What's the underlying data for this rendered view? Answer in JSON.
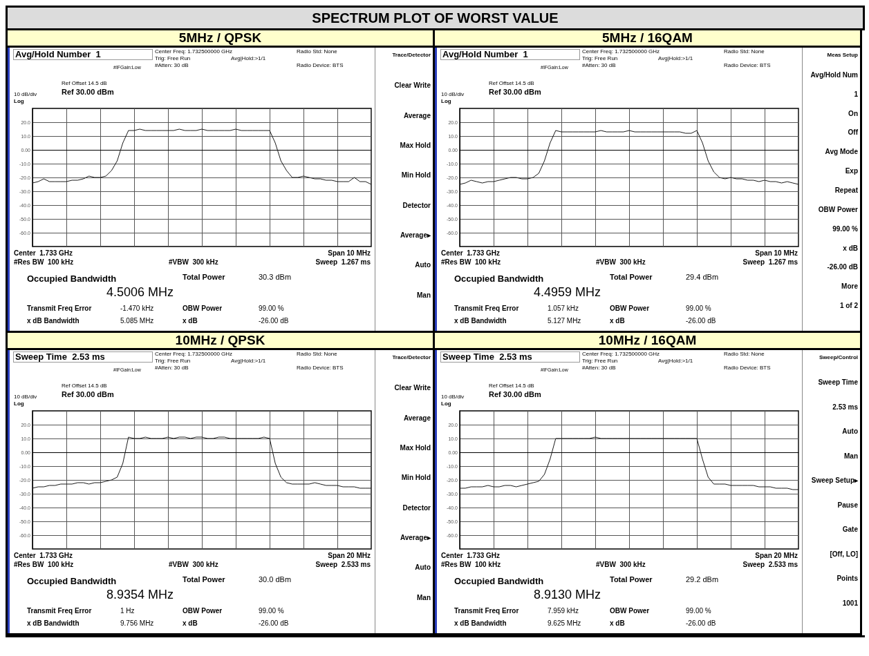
{
  "chart_data": [
    {
      "type": "other",
      "title": "SPECTRUM PLOT OF WORST VALUE"
    },
    {
      "type": "line",
      "title": "5MHz / QPSK",
      "categories": [
        null,
        null,
        null,
        null,
        null,
        null,
        null,
        null,
        null,
        null,
        null,
        null,
        null,
        null,
        null,
        null,
        null,
        null,
        null,
        null,
        null,
        null,
        null,
        null,
        null,
        null,
        null,
        null,
        null,
        null,
        null,
        null,
        null,
        null,
        null,
        null,
        null,
        null,
        null,
        null,
        null,
        null,
        null,
        null,
        null,
        null,
        null,
        null,
        null,
        null,
        null,
        null,
        null,
        null,
        null,
        null,
        null,
        null,
        null,
        null,
        null
      ],
      "color": "#1a1a1a",
      "values": [
        -24,
        -23,
        -21,
        -23,
        -23,
        -23,
        -23,
        -22,
        -22,
        -21,
        -19,
        -20,
        -20,
        -19,
        -15,
        -8,
        5,
        14,
        14,
        15,
        14,
        14,
        14,
        14,
        14,
        14,
        15,
        14,
        14,
        14,
        15,
        14,
        14,
        14,
        14,
        14,
        15,
        14,
        14,
        14,
        14,
        14,
        14,
        5,
        -8,
        -15,
        -20,
        -20,
        -19,
        -20,
        -21,
        -21,
        -22,
        -22,
        -23,
        -23,
        -23,
        -20,
        -23,
        -23,
        -25
      ],
      "ylim": [
        -70,
        30
      ],
      "yticks": [
        {
          "value": -60,
          "label": "-60.0"
        },
        {
          "value": -50,
          "label": "-50.0"
        },
        {
          "value": -40,
          "label": "-40.0"
        },
        {
          "value": -30,
          "label": "-30.0"
        },
        {
          "value": -20,
          "label": "-20.0"
        },
        {
          "value": -10,
          "label": "-10.0"
        },
        {
          "value": 0,
          "label": "0.00"
        },
        {
          "value": 10,
          "label": "10.0"
        },
        {
          "value": 20,
          "label": "20.0"
        }
      ],
      "grid": true,
      "tick_labels": "y",
      "annotations": [
        "Avg/Hold Number  1",
        "Center Freq: 1.732500000 GHz",
        "Trig: Free Run",
        "Avg|Hold:>1/1",
        "#Atten: 30 dB",
        "#IFGain:Low",
        "Radio Std: None",
        "Radio Device: BTS",
        "Ref Offset 14.5 dB",
        "Ref 30.00 dBm",
        "10 dB/div",
        "Log",
        "Center  1.733 GHz",
        "#Res BW  100 kHz",
        "#VBW  300 kHz",
        "Span 10 MHz",
        "Sweep  1.267 ms",
        "Occupied Bandwidth",
        "4.5006 MHz",
        "Total Power",
        "30.3 dBm",
        "Transmit Freq Error",
        "-1.470 kHz",
        "OBW Power",
        "99.00 %",
        "x dB Bandwidth",
        "5.085 MHz",
        "x dB",
        "-26.00 dB",
        "Trace/Detector",
        "Clear Write",
        "Average",
        "Max Hold",
        "Min Hold",
        "Detector",
        "Average▸",
        "Auto",
        "Man"
      ]
    },
    {
      "type": "line",
      "title": "5MHz / 16QAM",
      "categories": [
        null,
        null,
        null,
        null,
        null,
        null,
        null,
        null,
        null,
        null,
        null,
        null,
        null,
        null,
        null,
        null,
        null,
        null,
        null,
        null,
        null,
        null,
        null,
        null,
        null,
        null,
        null,
        null,
        null,
        null,
        null,
        null,
        null,
        null,
        null,
        null,
        null,
        null,
        null,
        null,
        null,
        null,
        null,
        null,
        null,
        null,
        null,
        null,
        null,
        null,
        null,
        null,
        null,
        null,
        null,
        null,
        null,
        null,
        null,
        null,
        null
      ],
      "color": "#1a1a1a",
      "values": [
        -25,
        -24,
        -22,
        -23,
        -24,
        -23,
        -23,
        -22,
        -21,
        -20,
        -20,
        -21,
        -21,
        -20,
        -17,
        -8,
        5,
        14,
        13,
        13,
        13,
        13,
        13,
        13,
        13,
        14,
        13,
        13,
        13,
        13,
        14,
        13,
        13,
        13,
        13,
        13,
        13,
        13,
        13,
        13,
        12,
        12,
        14,
        5,
        -8,
        -16,
        -20,
        -21,
        -20,
        -21,
        -21,
        -22,
        -22,
        -23,
        -22,
        -23,
        -23,
        -24,
        -23,
        -24,
        -25
      ],
      "ylim": [
        -70,
        30
      ],
      "yticks": [
        {
          "value": -60,
          "label": "-60.0"
        },
        {
          "value": -50,
          "label": "-50.0"
        },
        {
          "value": -40,
          "label": "-40.0"
        },
        {
          "value": -30,
          "label": "-30.0"
        },
        {
          "value": -20,
          "label": "-20.0"
        },
        {
          "value": -10,
          "label": "-10.0"
        },
        {
          "value": 0,
          "label": "0.00"
        },
        {
          "value": 10,
          "label": "10.0"
        },
        {
          "value": 20,
          "label": "20.0"
        }
      ],
      "grid": true,
      "tick_labels": "y",
      "annotations": [
        "Avg/Hold Number  1",
        "Center Freq: 1.732500000 GHz",
        "Trig: Free Run",
        "Avg|Hold:>1/1",
        "#Atten: 30 dB",
        "#IFGain:Low",
        "Radio Std: None",
        "Radio Device: BTS",
        "Ref Offset 14.5 dB",
        "Ref 30.00 dBm",
        "10 dB/div",
        "Log",
        "Center  1.733 GHz",
        "#Res BW  100 kHz",
        "#VBW  300 kHz",
        "Span 10 MHz",
        "Sweep  1.267 ms",
        "Occupied Bandwidth",
        "4.4959 MHz",
        "Total Power",
        "29.4 dBm",
        "Transmit Freq Error",
        "1.057 kHz",
        "OBW Power",
        "99.00 %",
        "x dB Bandwidth",
        "5.127 MHz",
        "x dB",
        "-26.00 dB",
        "Meas Setup",
        "Avg/Hold Num",
        "1",
        "On",
        "Off",
        "Avg Mode",
        "Exp",
        "Repeat",
        "OBW Power",
        "99.00 %",
        "x dB",
        "-26.00 dB",
        "More",
        "1 of 2"
      ]
    },
    {
      "type": "line",
      "title": "10MHz / QPSK",
      "categories": [
        null,
        null,
        null,
        null,
        null,
        null,
        null,
        null,
        null,
        null,
        null,
        null,
        null,
        null,
        null,
        null,
        null,
        null,
        null,
        null,
        null,
        null,
        null,
        null,
        null,
        null,
        null,
        null,
        null,
        null,
        null,
        null,
        null,
        null,
        null,
        null,
        null,
        null,
        null,
        null,
        null,
        null,
        null,
        null,
        null,
        null,
        null,
        null,
        null,
        null,
        null,
        null,
        null,
        null,
        null,
        null,
        null,
        null,
        null,
        null,
        null
      ],
      "color": "#1a1a1a",
      "values": [
        -26,
        -25,
        -25,
        -24,
        -24,
        -23,
        -23,
        -23,
        -22,
        -22,
        -23,
        -22,
        -22,
        -21,
        -20,
        -18,
        -8,
        11,
        10,
        10,
        11,
        10,
        10,
        10,
        11,
        10,
        11,
        11,
        10,
        11,
        11,
        10,
        10,
        11,
        11,
        10,
        10,
        10,
        10,
        10,
        10,
        11,
        10,
        -8,
        -18,
        -22,
        -23,
        -23,
        -23,
        -23,
        -22,
        -23,
        -24,
        -24,
        -24,
        -25,
        -25,
        -25,
        -26,
        -26,
        -26
      ],
      "ylim": [
        -70,
        30
      ],
      "yticks": [
        {
          "value": -60,
          "label": "-60.0"
        },
        {
          "value": -50,
          "label": "-50.0"
        },
        {
          "value": -40,
          "label": "-40.0"
        },
        {
          "value": -30,
          "label": "-30.0"
        },
        {
          "value": -20,
          "label": "-20.0"
        },
        {
          "value": -10,
          "label": "-10.0"
        },
        {
          "value": 0,
          "label": "0.00"
        },
        {
          "value": 10,
          "label": "10.0"
        },
        {
          "value": 20,
          "label": "20.0"
        }
      ],
      "grid": true,
      "tick_labels": "y",
      "annotations": [
        "Sweep Time  2.53 ms",
        "Center Freq: 1.732500000 GHz",
        "Trig: Free Run",
        "Avg|Hold:>1/1",
        "#Atten: 30 dB",
        "#IFGain:Low",
        "Radio Std: None",
        "Radio Device: BTS",
        "Ref Offset 14.5 dB",
        "Ref 30.00 dBm",
        "10 dB/div",
        "Log",
        "Center  1.733 GHz",
        "#Res BW  100 kHz",
        "#VBW  300 kHz",
        "Span 20 MHz",
        "Sweep  2.533 ms",
        "Occupied Bandwidth",
        "8.9354 MHz",
        "Total Power",
        "30.0 dBm",
        "Transmit Freq Error",
        "1 Hz",
        "OBW Power",
        "99.00 %",
        "x dB Bandwidth",
        "9.756 MHz",
        "x dB",
        "-26.00 dB",
        "Trace/Detector",
        "Clear Write",
        "Average",
        "Max Hold",
        "Min Hold",
        "Detector",
        "Average▸",
        "Auto",
        "Man"
      ]
    },
    {
      "type": "line",
      "title": "10MHz / 16QAM",
      "categories": [
        null,
        null,
        null,
        null,
        null,
        null,
        null,
        null,
        null,
        null,
        null,
        null,
        null,
        null,
        null,
        null,
        null,
        null,
        null,
        null,
        null,
        null,
        null,
        null,
        null,
        null,
        null,
        null,
        null,
        null,
        null,
        null,
        null,
        null,
        null,
        null,
        null,
        null,
        null,
        null,
        null,
        null,
        null,
        null,
        null,
        null,
        null,
        null,
        null,
        null,
        null,
        null,
        null,
        null,
        null,
        null,
        null,
        null,
        null,
        null,
        null
      ],
      "color": "#1a1a1a",
      "values": [
        -26,
        -26,
        -25,
        -25,
        -25,
        -24,
        -25,
        -25,
        -24,
        -24,
        -25,
        -24,
        -23,
        -22,
        -21,
        -16,
        -5,
        10,
        10,
        10,
        10,
        10,
        10,
        10,
        11,
        10,
        10,
        10,
        10,
        10,
        10,
        10,
        10,
        10,
        10,
        10,
        10,
        10,
        10,
        10,
        10,
        10,
        10,
        -5,
        -18,
        -23,
        -23,
        -23,
        -24,
        -24,
        -24,
        -24,
        -24,
        -25,
        -25,
        -25,
        -26,
        -26,
        -26,
        -27,
        -27
      ],
      "ylim": [
        -70,
        30
      ],
      "yticks": [
        {
          "value": -60,
          "label": "-60.0"
        },
        {
          "value": -50,
          "label": "-50.0"
        },
        {
          "value": -40,
          "label": "-40.0"
        },
        {
          "value": -30,
          "label": "-30.0"
        },
        {
          "value": -20,
          "label": "-20.0"
        },
        {
          "value": -10,
          "label": "-10.0"
        },
        {
          "value": 0,
          "label": "0.00"
        },
        {
          "value": 10,
          "label": "10.0"
        },
        {
          "value": 20,
          "label": "20.0"
        }
      ],
      "grid": true,
      "tick_labels": "y",
      "annotations": [
        "Sweep Time  2.53 ms",
        "Center Freq: 1.732500000 GHz",
        "Trig: Free Run",
        "Avg|Hold:>1/1",
        "#Atten: 30 dB",
        "#IFGain:Low",
        "Radio Std: None",
        "Radio Device: BTS",
        "Ref Offset 14.5 dB",
        "Ref 30.00 dBm",
        "10 dB/div",
        "Log",
        "Center  1.733 GHz",
        "#Res BW  100 kHz",
        "#VBW  300 kHz",
        "Span 20 MHz",
        "Sweep  2.533 ms",
        "Occupied Bandwidth",
        "8.9130 MHz",
        "Total Power",
        "29.2 dBm",
        "Transmit Freq Error",
        "7.959 kHz",
        "OBW Power",
        "99.00 %",
        "x dB Bandwidth",
        "9.625 MHz",
        "x dB",
        "-26.00 dB",
        "Sweep/Control",
        "Sweep Time",
        "2.53 ms",
        "Auto",
        "Man",
        "Sweep Setup▸",
        "Pause",
        "Gate",
        "[Off, LO]",
        "Points",
        "1001"
      ]
    }
  ]
}
